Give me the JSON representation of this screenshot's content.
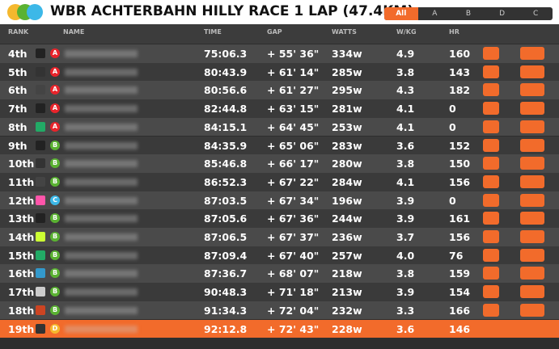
{
  "header": {
    "title": "WBR ACHTERBAHN HILLY RACE 1 LAP (47.4KM)",
    "tabs": [
      "All",
      "A",
      "B",
      "D",
      "C"
    ]
  },
  "table": {
    "columns": [
      "RANK",
      "NAME",
      "TIME",
      "GAP",
      "WATTS",
      "W/KG",
      "HR"
    ],
    "rows": [
      {
        "rank": "4th",
        "category": "A",
        "time": "75:06.3",
        "gap": "+ 55' 36\"",
        "watts": "334w",
        "wkg": "4.9",
        "hr": "160"
      },
      {
        "rank": "5th",
        "category": "A",
        "time": "80:43.9",
        "gap": "+ 61' 14\"",
        "watts": "285w",
        "wkg": "3.8",
        "hr": "143"
      },
      {
        "rank": "6th",
        "category": "A",
        "time": "80:56.6",
        "gap": "+ 61' 27\"",
        "watts": "295w",
        "wkg": "4.3",
        "hr": "182"
      },
      {
        "rank": "7th",
        "category": "A",
        "time": "82:44.8",
        "gap": "+ 63' 15\"",
        "watts": "281w",
        "wkg": "4.1",
        "hr": "0"
      },
      {
        "rank": "8th",
        "category": "A",
        "time": "84:15.1",
        "gap": "+ 64' 45\"",
        "watts": "253w",
        "wkg": "4.1",
        "hr": "0"
      },
      {
        "rank": "9th",
        "category": "B",
        "time": "84:35.9",
        "gap": "+ 65' 06\"",
        "watts": "283w",
        "wkg": "3.6",
        "hr": "152"
      },
      {
        "rank": "10th",
        "category": "B",
        "time": "85:46.8",
        "gap": "+ 66' 17\"",
        "watts": "280w",
        "wkg": "3.8",
        "hr": "150"
      },
      {
        "rank": "11th",
        "category": "B",
        "time": "86:52.3",
        "gap": "+ 67' 22\"",
        "watts": "284w",
        "wkg": "4.1",
        "hr": "156"
      },
      {
        "rank": "12th",
        "category": "C",
        "time": "87:03.5",
        "gap": "+ 67' 34\"",
        "watts": "196w",
        "wkg": "3.9",
        "hr": "0"
      },
      {
        "rank": "13th",
        "category": "B",
        "time": "87:05.6",
        "gap": "+ 67' 36\"",
        "watts": "244w",
        "wkg": "3.9",
        "hr": "161"
      },
      {
        "rank": "14th",
        "category": "B",
        "time": "87:06.5",
        "gap": "+ 67' 37\"",
        "watts": "236w",
        "wkg": "3.7",
        "hr": "156"
      },
      {
        "rank": "15th",
        "category": "B",
        "time": "87:09.4",
        "gap": "+ 67' 40\"",
        "watts": "257w",
        "wkg": "4.0",
        "hr": "76"
      },
      {
        "rank": "16th",
        "category": "B",
        "time": "87:36.7",
        "gap": "+ 68' 07\"",
        "watts": "218w",
        "wkg": "3.8",
        "hr": "159"
      },
      {
        "rank": "17th",
        "category": "B",
        "time": "90:48.3",
        "gap": "+ 71' 18\"",
        "watts": "213w",
        "wkg": "3.9",
        "hr": "154"
      },
      {
        "rank": "18th",
        "category": "B",
        "time": "91:34.3",
        "gap": "+ 72' 04\"",
        "watts": "232w",
        "wkg": "3.3",
        "hr": "166"
      },
      {
        "rank": "19th",
        "category": "D",
        "time": "92:12.8",
        "gap": "+ 72' 43\"",
        "watts": "228w",
        "wkg": "3.6",
        "hr": "146"
      }
    ]
  }
}
